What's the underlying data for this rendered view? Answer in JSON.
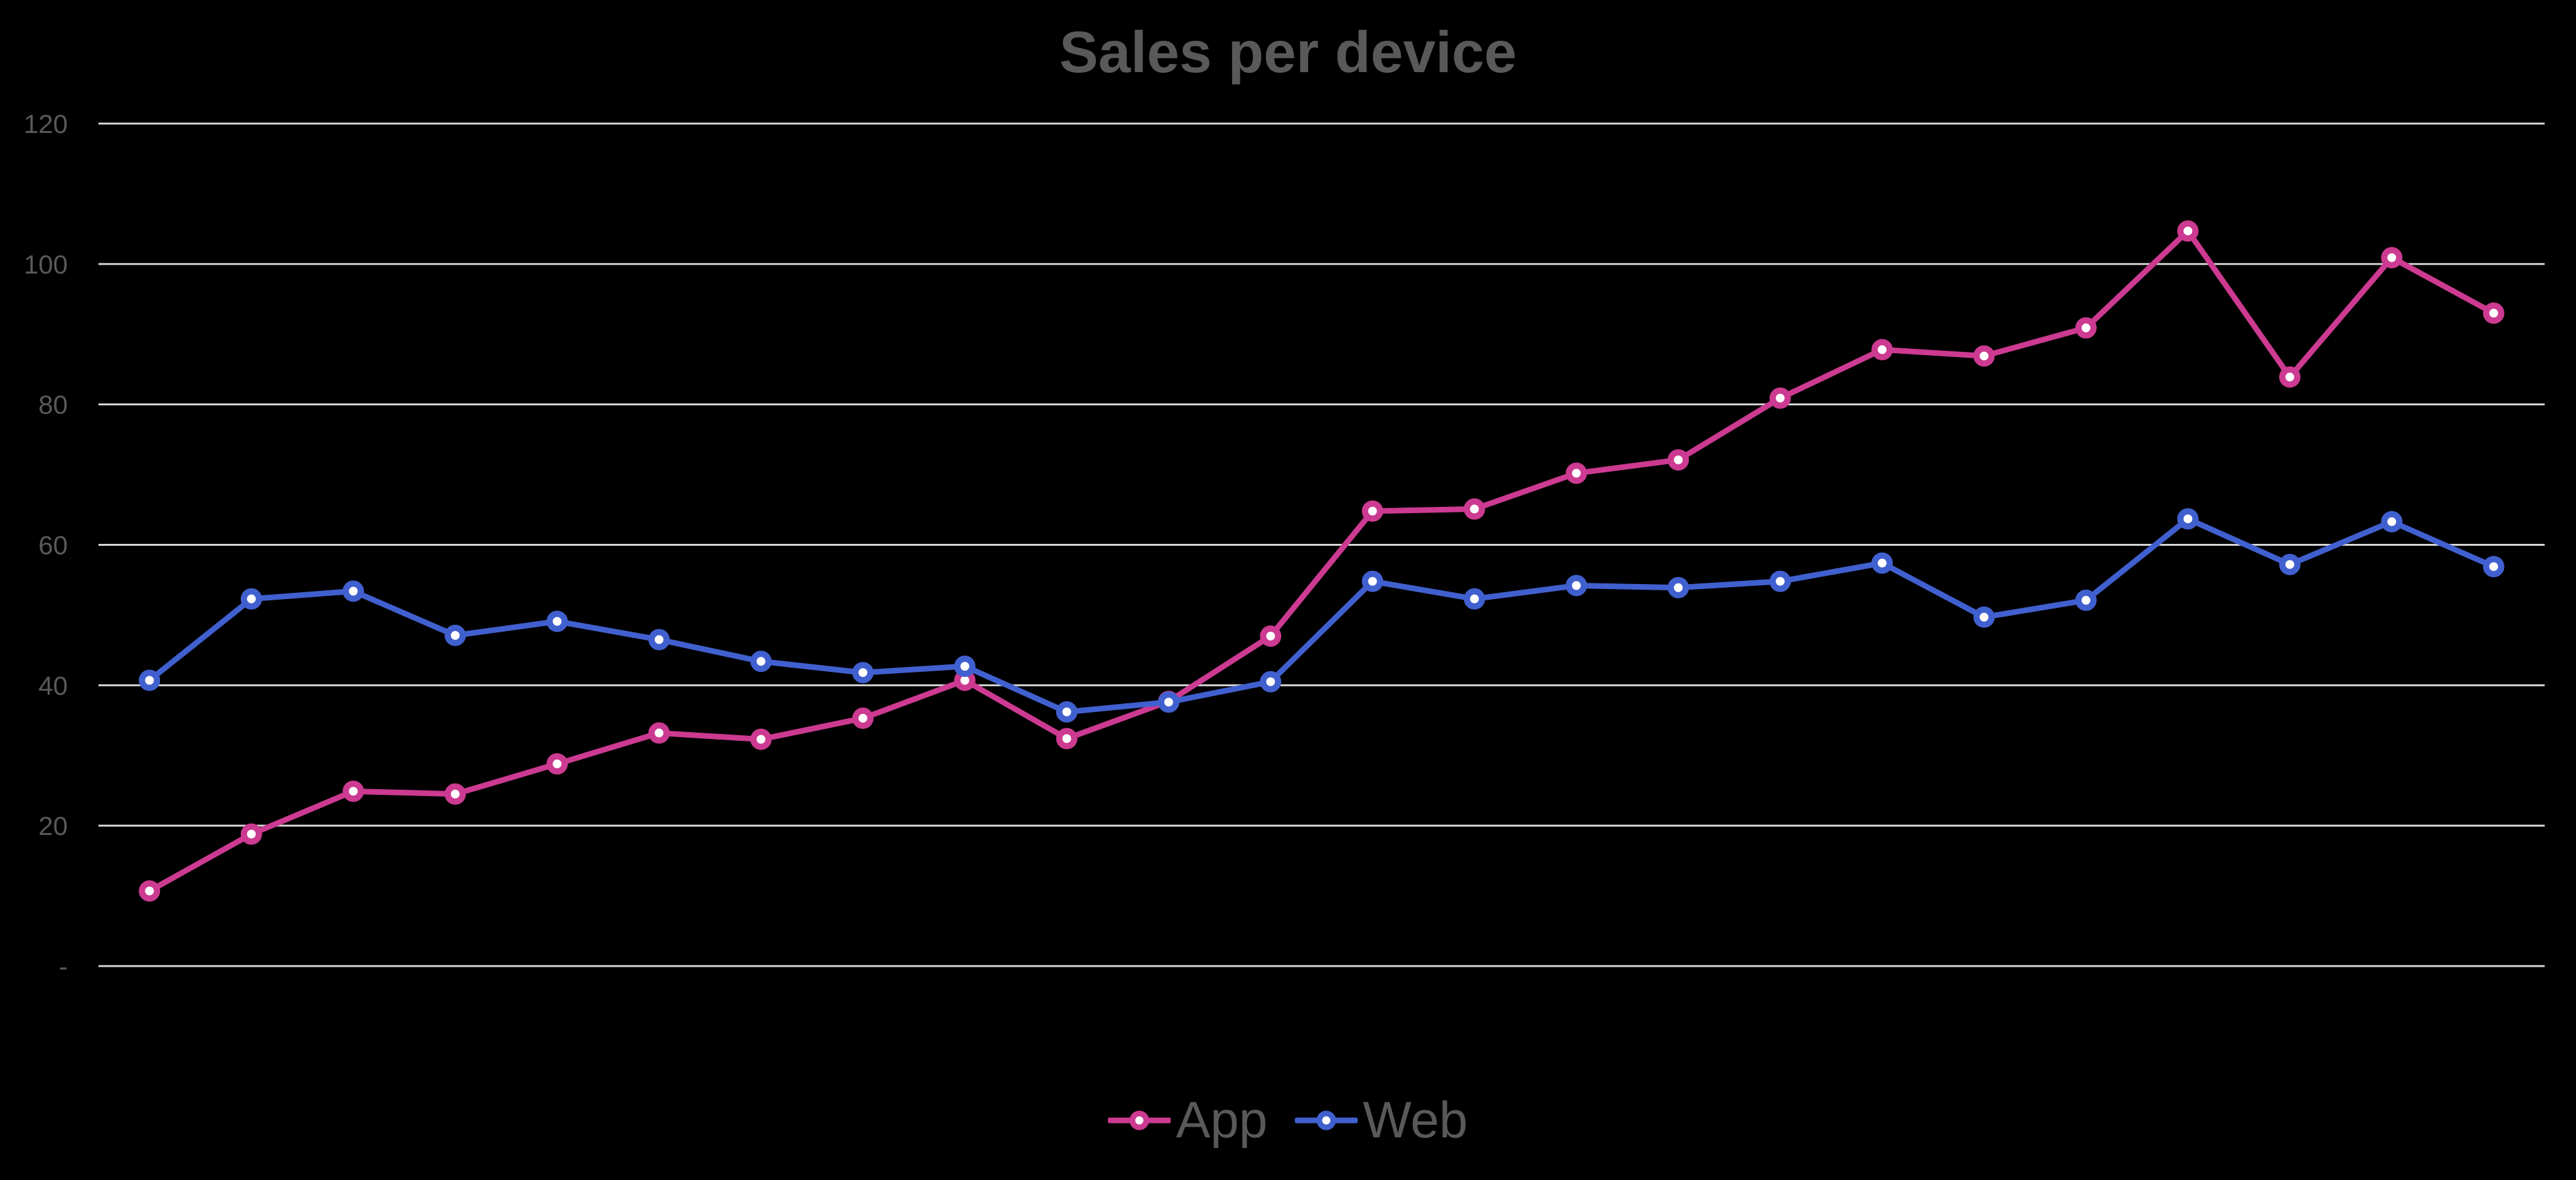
{
  "chart_data": {
    "type": "line",
    "title": "Sales per device",
    "xlabel": "",
    "ylabel": "",
    "ylim": [
      0,
      120
    ],
    "yticks": [
      0,
      20,
      40,
      60,
      80,
      100,
      120
    ],
    "ytick_labels": [
      "-",
      "20",
      "40",
      "60",
      "80",
      "100",
      "120"
    ],
    "grid": true,
    "legend_position": "bottom",
    "x": [
      1,
      2,
      3,
      4,
      5,
      6,
      7,
      8,
      9,
      10,
      11,
      12,
      13,
      14,
      15,
      16,
      17,
      18,
      19,
      20,
      21,
      22,
      23,
      24
    ],
    "series": [
      {
        "name": "App",
        "color": "#CC3A91",
        "values": [
          10.7,
          18.8,
          24.9,
          24.5,
          28.8,
          33.2,
          32.3,
          35.3,
          40.7,
          32.4,
          37.7,
          47.0,
          64.8,
          65.1,
          70.2,
          72.1,
          80.9,
          87.8,
          86.9,
          90.9,
          104.7,
          83.9,
          100.9,
          93.0
        ]
      },
      {
        "name": "Web",
        "color": "#4160CF",
        "values": [
          40.7,
          52.3,
          53.4,
          47.1,
          49.1,
          46.5,
          43.4,
          41.8,
          42.7,
          36.2,
          37.6,
          40.5,
          54.8,
          52.3,
          54.2,
          53.9,
          54.8,
          57.4,
          49.7,
          52.1,
          63.7,
          57.2,
          63.3,
          56.9
        ]
      }
    ]
  },
  "colors": {
    "background": "#000000",
    "text": "#595959",
    "gridline": "#D9D9D9",
    "marker_fill": "#FFFFFF"
  }
}
